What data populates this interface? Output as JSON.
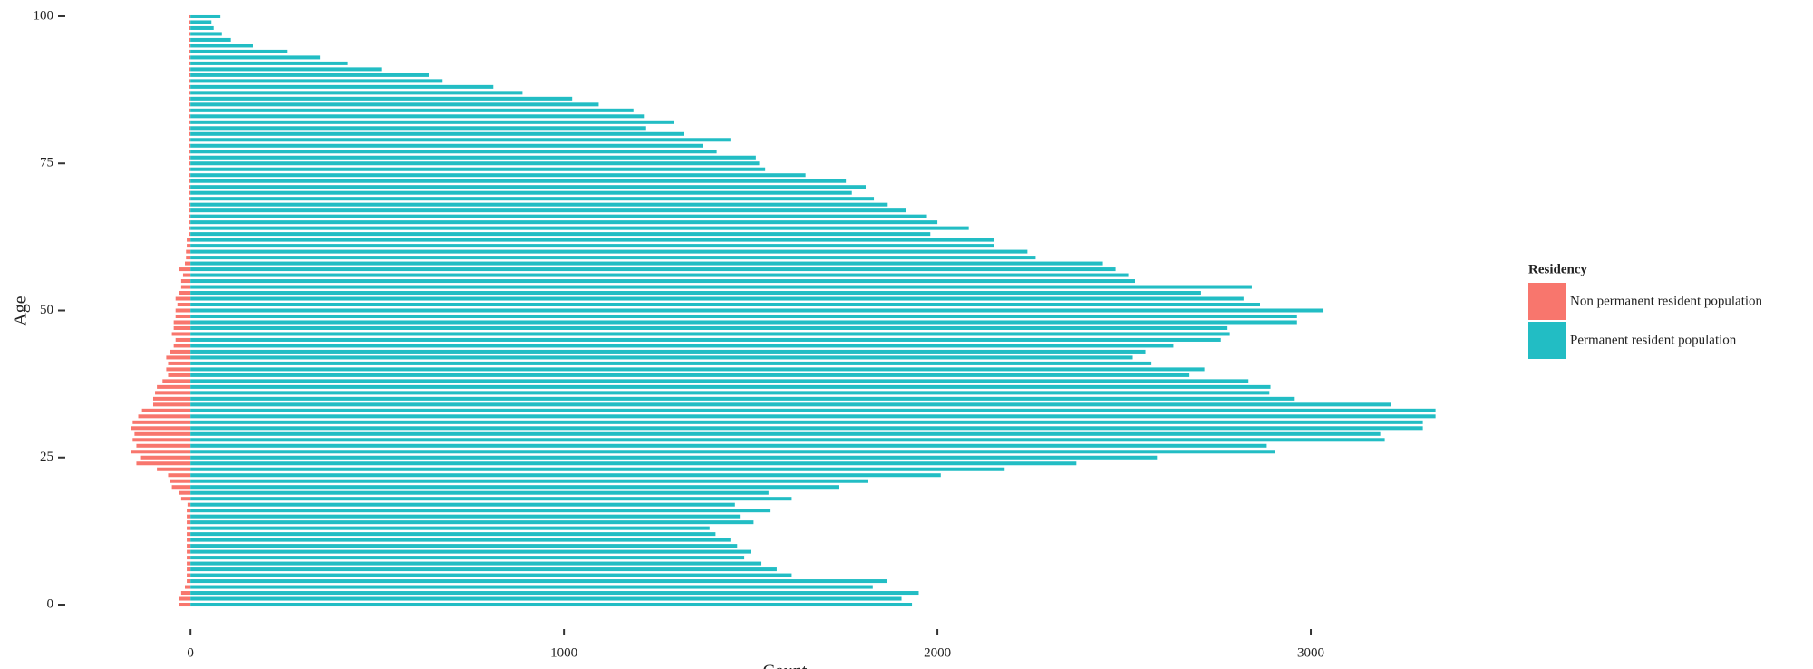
{
  "chart_data": {
    "type": "bar",
    "orientation": "horizontal",
    "y_label": "Age",
    "x_label": "Count",
    "legend_title": "Residency",
    "legend_position": "right",
    "grid": false,
    "categories": [
      0,
      1,
      2,
      3,
      4,
      5,
      6,
      7,
      8,
      9,
      10,
      11,
      12,
      13,
      14,
      15,
      16,
      17,
      18,
      19,
      20,
      21,
      22,
      23,
      24,
      25,
      26,
      27,
      28,
      29,
      30,
      31,
      32,
      33,
      34,
      35,
      36,
      37,
      38,
      39,
      40,
      41,
      42,
      43,
      44,
      45,
      46,
      47,
      48,
      49,
      50,
      51,
      52,
      53,
      54,
      55,
      56,
      57,
      58,
      59,
      60,
      61,
      62,
      63,
      64,
      65,
      66,
      67,
      68,
      69,
      70,
      71,
      72,
      73,
      74,
      75,
      76,
      77,
      78,
      79,
      80,
      81,
      82,
      83,
      84,
      85,
      86,
      87,
      88,
      89,
      90,
      91,
      92,
      93,
      94,
      95,
      96,
      97,
      98,
      99,
      100
    ],
    "series": [
      {
        "name": "Non permanent resident population",
        "color": "#F8766D",
        "values": [
          -30,
          -30,
          -25,
          -15,
          -10,
          -10,
          -10,
          -10,
          -10,
          -10,
          -10,
          -10,
          -10,
          -10,
          -10,
          -10,
          -10,
          -8,
          -25,
          -30,
          -50,
          -55,
          -60,
          -90,
          -145,
          -135,
          -160,
          -145,
          -155,
          -150,
          -160,
          -155,
          -140,
          -130,
          -100,
          -100,
          -95,
          -90,
          -75,
          -60,
          -65,
          -60,
          -65,
          -55,
          -45,
          -40,
          -50,
          -45,
          -45,
          -40,
          -40,
          -35,
          -40,
          -30,
          -25,
          -25,
          -20,
          -30,
          -15,
          -12,
          -12,
          -10,
          -10,
          -5,
          -5,
          -5,
          -5,
          -5,
          -5,
          -5,
          -3,
          -3,
          -3,
          -3,
          -3,
          -3,
          -3,
          -3,
          -3,
          -3,
          -3,
          -3,
          -3,
          -3,
          -3,
          -3,
          -3,
          -3,
          -3,
          -3,
          -3,
          -3,
          -3,
          -3,
          -3,
          -3,
          -3,
          -3,
          -3,
          -3,
          -3
        ]
      },
      {
        "name": "Permanent resident population",
        "color": "#22BDC4",
        "values": [
          1932,
          1904,
          1950,
          1827,
          1864,
          1610,
          1570,
          1529,
          1483,
          1502,
          1464,
          1446,
          1406,
          1390,
          1508,
          1471,
          1551,
          1458,
          1610,
          1548,
          1737,
          1814,
          2009,
          2180,
          2372,
          2588,
          2904,
          2882,
          3198,
          3186,
          3300,
          3300,
          3334,
          3334,
          3214,
          2957,
          2889,
          2892,
          2833,
          2675,
          2715,
          2573,
          2523,
          2557,
          2632,
          2759,
          2783,
          2777,
          2963,
          2963,
          3034,
          2864,
          2820,
          2706,
          2842,
          2529,
          2511,
          2477,
          2443,
          2263,
          2241,
          2152,
          2152,
          1981,
          2084,
          2000,
          1972,
          1916,
          1867,
          1830,
          1771,
          1808,
          1755,
          1647,
          1539,
          1523,
          1514,
          1409,
          1372,
          1446,
          1322,
          1220,
          1294,
          1214,
          1186,
          1093,
          1022,
          889,
          811,
          675,
          638,
          511,
          421,
          347,
          260,
          167,
          108,
          84,
          62,
          56,
          80
        ]
      }
    ],
    "xlim": [
      -350,
      3500
    ],
    "xticks": [
      0,
      1000,
      2000,
      3000
    ],
    "ylim": [
      -2,
      102
    ],
    "yticks": [
      0,
      25,
      50,
      75,
      100
    ]
  }
}
